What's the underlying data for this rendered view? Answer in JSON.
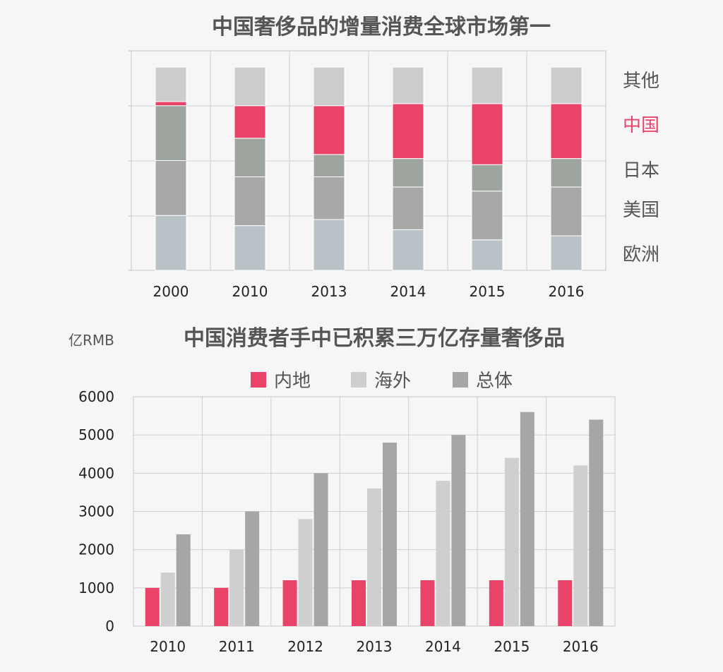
{
  "colors": {
    "red": "#e9436a",
    "other": "#cccccc",
    "japan": "#9ea59e",
    "usa": "#a8a8a8",
    "europe": "#b9c3c7",
    "overseas": "#cfcfcf",
    "total": "#a6a6a6",
    "axis_text": "#222222",
    "title_text": "#555555",
    "legend_text": "#555555"
  },
  "chart_data": [
    {
      "type": "bar",
      "stacked": true,
      "percent": true,
      "title": "中国奢侈品的增量消费全球市场第一",
      "categories": [
        "2000",
        "2010",
        "2013",
        "2014",
        "2015",
        "2016"
      ],
      "series": [
        {
          "name": "欧洲",
          "values": [
            27,
            22,
            25,
            20,
            15,
            17
          ]
        },
        {
          "name": "美国",
          "values": [
            27,
            24,
            21,
            21,
            24,
            24
          ]
        },
        {
          "name": "日本",
          "values": [
            27,
            19,
            11,
            14,
            13,
            14
          ]
        },
        {
          "name": "中国",
          "values": [
            2,
            16,
            24,
            27,
            30,
            27
          ]
        },
        {
          "name": "其他",
          "values": [
            17,
            19,
            19,
            18,
            18,
            18
          ]
        }
      ],
      "legend_placement": "right",
      "grid": true
    },
    {
      "type": "bar",
      "title": "中国消费者手中已积累三万亿存量奢侈品",
      "ylabel": "亿RMB",
      "ylim": [
        0,
        6000
      ],
      "yticks": [
        "0",
        "1000",
        "2000",
        "3000",
        "4000",
        "5000",
        "6000"
      ],
      "categories": [
        "2010",
        "2011",
        "2012",
        "2013",
        "2014",
        "2015",
        "2016"
      ],
      "series": [
        {
          "name": "内地",
          "values": [
            1000,
            1000,
            1200,
            1200,
            1200,
            1200,
            1200
          ]
        },
        {
          "name": "海外",
          "values": [
            1400,
            2000,
            2800,
            3600,
            3800,
            4400,
            4200
          ]
        },
        {
          "name": "总体",
          "values": [
            2400,
            3000,
            4000,
            4800,
            5000,
            5600,
            5400
          ]
        }
      ],
      "legend_placement": "top",
      "grid": true
    }
  ]
}
